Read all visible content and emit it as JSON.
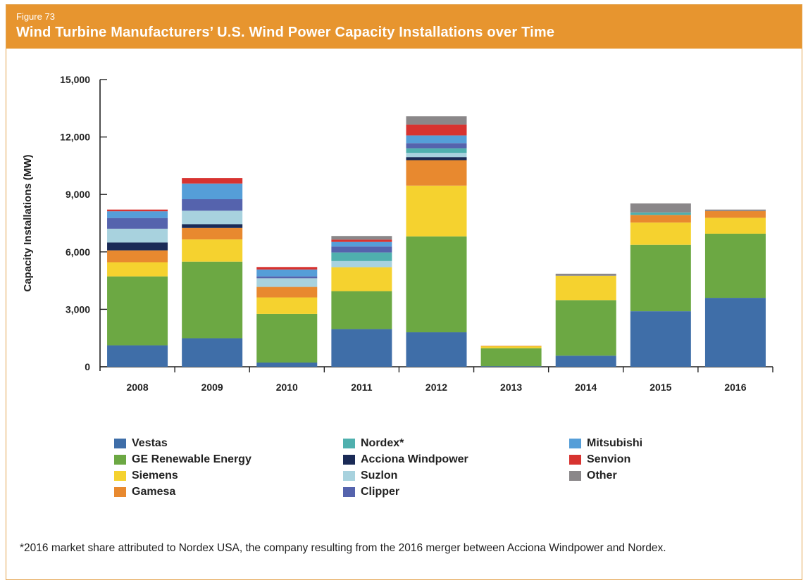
{
  "figure": {
    "label": "Figure 73",
    "title": "Wind Turbine Manufacturers’ U.S. Wind Power Capacity Installations over Time"
  },
  "footnote": "*2016 market share attributed to Nordex USA, the company resulting from the 2016 merger between Acciona Windpower and Nordex.",
  "chart_data": {
    "type": "bar",
    "stacked": true,
    "title": "Wind Turbine Manufacturers’ U.S. Wind Power Capacity Installations over Time",
    "xlabel": "",
    "ylabel": "Capacity Installations (MW)",
    "ylim": [
      0,
      15000
    ],
    "yticks": [
      0,
      3000,
      6000,
      9000,
      12000,
      15000
    ],
    "ytick_labels": [
      "0",
      "3,000",
      "6,000",
      "9,000",
      "12,000",
      "15,000"
    ],
    "categories": [
      "2008",
      "2009",
      "2010",
      "2011",
      "2012",
      "2013",
      "2014",
      "2015",
      "2016"
    ],
    "grid": false,
    "legend_position": "bottom",
    "series": [
      {
        "name": "Vestas",
        "color": "#3f6ea8",
        "values": [
          1120,
          1490,
          220,
          1970,
          1800,
          30,
          580,
          2900,
          3600
        ]
      },
      {
        "name": "GE Renewable Energy",
        "color": "#6ca843",
        "values": [
          3600,
          4000,
          2540,
          1980,
          5010,
          940,
          2900,
          3470,
          3350
        ]
      },
      {
        "name": "Siemens",
        "color": "#f5d22f",
        "values": [
          740,
          1160,
          860,
          1250,
          2650,
          100,
          1270,
          1160,
          830
        ]
      },
      {
        "name": "Gamesa",
        "color": "#e8892f",
        "values": [
          620,
          600,
          550,
          0,
          1330,
          30,
          0,
          400,
          350
        ]
      },
      {
        "name": "Acciona Windpower",
        "color": "#1a2a56",
        "values": [
          410,
          200,
          0,
          0,
          160,
          0,
          0,
          0,
          0
        ]
      },
      {
        "name": "Suzlon",
        "color": "#a8d2de",
        "values": [
          720,
          700,
          450,
          320,
          220,
          0,
          0,
          0,
          0
        ]
      },
      {
        "name": "Nordex*",
        "color": "#4fb0ae",
        "values": [
          0,
          0,
          0,
          450,
          240,
          0,
          0,
          130,
          0
        ]
      },
      {
        "name": "Clipper",
        "color": "#5563ad",
        "values": [
          560,
          600,
          100,
          310,
          270,
          0,
          0,
          0,
          0
        ]
      },
      {
        "name": "Mitsubishi",
        "color": "#559ed8",
        "values": [
          350,
          820,
          360,
          240,
          400,
          0,
          0,
          0,
          0
        ]
      },
      {
        "name": "Senvion",
        "color": "#d73330",
        "values": [
          90,
          280,
          130,
          120,
          570,
          0,
          0,
          0,
          0
        ]
      },
      {
        "name": "Other",
        "color": "#8a8789",
        "values": [
          0,
          0,
          0,
          190,
          430,
          0,
          110,
          470,
          80
        ]
      }
    ]
  }
}
